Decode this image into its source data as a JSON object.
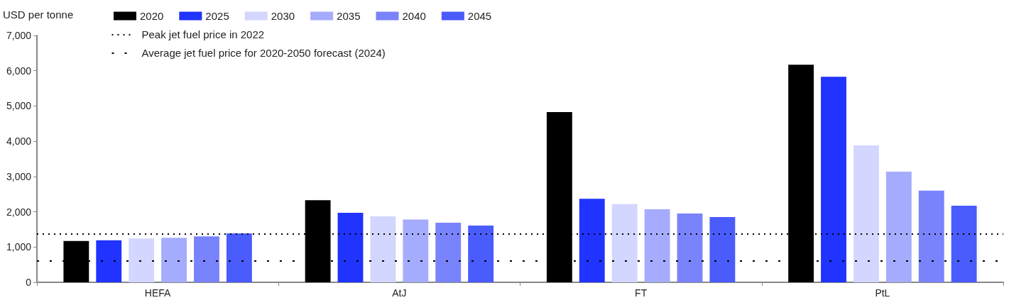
{
  "chart_data": {
    "type": "bar",
    "ylabel": "USD per tonne",
    "categories": [
      "HEFA",
      "AtJ",
      "FT",
      "PtL"
    ],
    "series": [
      {
        "name": "2020",
        "color": "#000000",
        "values": [
          1170,
          2330,
          4830,
          6170
        ]
      },
      {
        "name": "2025",
        "color": "#2033ff",
        "values": [
          1190,
          1970,
          2370,
          5830
        ]
      },
      {
        "name": "2030",
        "color": "#d3d6fe",
        "values": [
          1240,
          1870,
          2220,
          3880
        ]
      },
      {
        "name": "2035",
        "color": "#a5acfd",
        "values": [
          1260,
          1780,
          2070,
          3140
        ]
      },
      {
        "name": "2040",
        "color": "#7983fc",
        "values": [
          1300,
          1690,
          1950,
          2600
        ]
      },
      {
        "name": "2045",
        "color": "#4a5cfc",
        "values": [
          1390,
          1610,
          1850,
          2170
        ]
      }
    ],
    "ylim": [
      0,
      7000
    ],
    "yticks": [
      0,
      {
        "value": 1000,
        "label": "1,000"
      },
      {
        "value": 2000,
        "label": "2,000"
      },
      {
        "value": 3000,
        "label": "3,000"
      },
      {
        "value": 4000,
        "label": "4,000"
      },
      {
        "value": 5000,
        "label": "5,000"
      },
      {
        "value": 6000,
        "label": "6,000"
      },
      {
        "value": 7000,
        "label": "7,000"
      }
    ],
    "ref_lines": [
      {
        "axis": "y",
        "value": 1370,
        "label": "Peak jet fuel price in 2022",
        "color": "#000000",
        "line_style": "dotted"
      },
      {
        "axis": "y",
        "value": 600,
        "label": "Average jet fuel price for 2020-2050 forecast (2024)",
        "color": "#000000",
        "line_style": "dotted"
      }
    ],
    "grid": false,
    "legend": "top left"
  }
}
